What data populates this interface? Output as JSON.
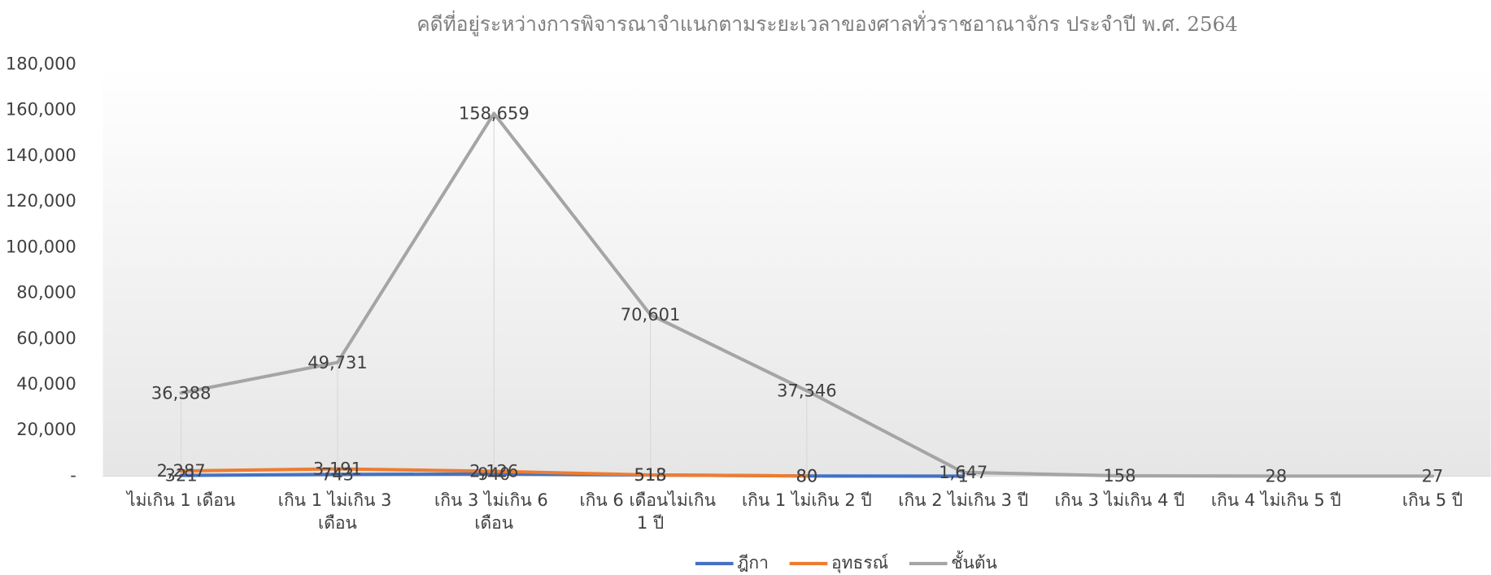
{
  "chart_data": {
    "type": "line",
    "title": "คดีที่อยู่ระหว่างการพิจารณาจำแนกตามระยะเวลาของศาลทั่วราชอาณาจักร ประจำปี พ.ศ. 2564",
    "categories": [
      "ไม่เกิน 1 เดือน",
      "เกิน 1 ไม่เกิน 3 เดือน",
      "เกิน 3 ไม่เกิน 6 เดือน",
      "เกิน 6 เดือนไม่เกิน 1 ปี",
      "เกิน 1 ไม่เกิน 2 ปี",
      "เกิน 2 ไม่เกิน 3 ปี",
      "เกิน 3 ไม่เกิน 4 ปี",
      "เกิน 4 ไม่เกิน 5 ปี",
      "เกิน 5 ปี"
    ],
    "series": [
      {
        "name": "ฎีกา",
        "color": "#4472c4",
        "values": [
          321,
          743,
          940,
          513,
          80,
          1,
          null,
          null,
          null
        ],
        "value_labels": [
          "321",
          "743",
          "940",
          "513",
          "80",
          "1",
          null,
          null,
          null
        ]
      },
      {
        "name": "อุทธรณ์",
        "color": "#ed7d31",
        "values": [
          2287,
          3191,
          2126,
          518,
          80,
          null,
          null,
          null,
          null
        ],
        "value_labels": [
          "2,287",
          "3,191",
          "2,126",
          "518",
          "80",
          null,
          null,
          null,
          null
        ]
      },
      {
        "name": "ชั้นต้น",
        "color": "#a5a5a5",
        "values": [
          36388,
          49731,
          158659,
          70601,
          37346,
          1647,
          158,
          28,
          27
        ],
        "value_labels": [
          "36,388",
          "49,731",
          "158,659",
          "70,601",
          "37,346",
          "1,647",
          "158",
          "28",
          "27"
        ]
      }
    ],
    "ylim": [
      0,
      180000
    ],
    "yticks": [
      {
        "value": 0,
        "label": "-"
      },
      {
        "value": 20000,
        "label": "20,000"
      },
      {
        "value": 40000,
        "label": "40,000"
      },
      {
        "value": 60000,
        "label": "60,000"
      },
      {
        "value": 80000,
        "label": "80,000"
      },
      {
        "value": 100000,
        "label": "100,000"
      },
      {
        "value": 120000,
        "label": "120,000"
      },
      {
        "value": 140000,
        "label": "140,000"
      },
      {
        "value": 160000,
        "label": "160,000"
      },
      {
        "value": 180000,
        "label": "180,000"
      }
    ],
    "drop_lines": true,
    "legend": "bottom"
  }
}
